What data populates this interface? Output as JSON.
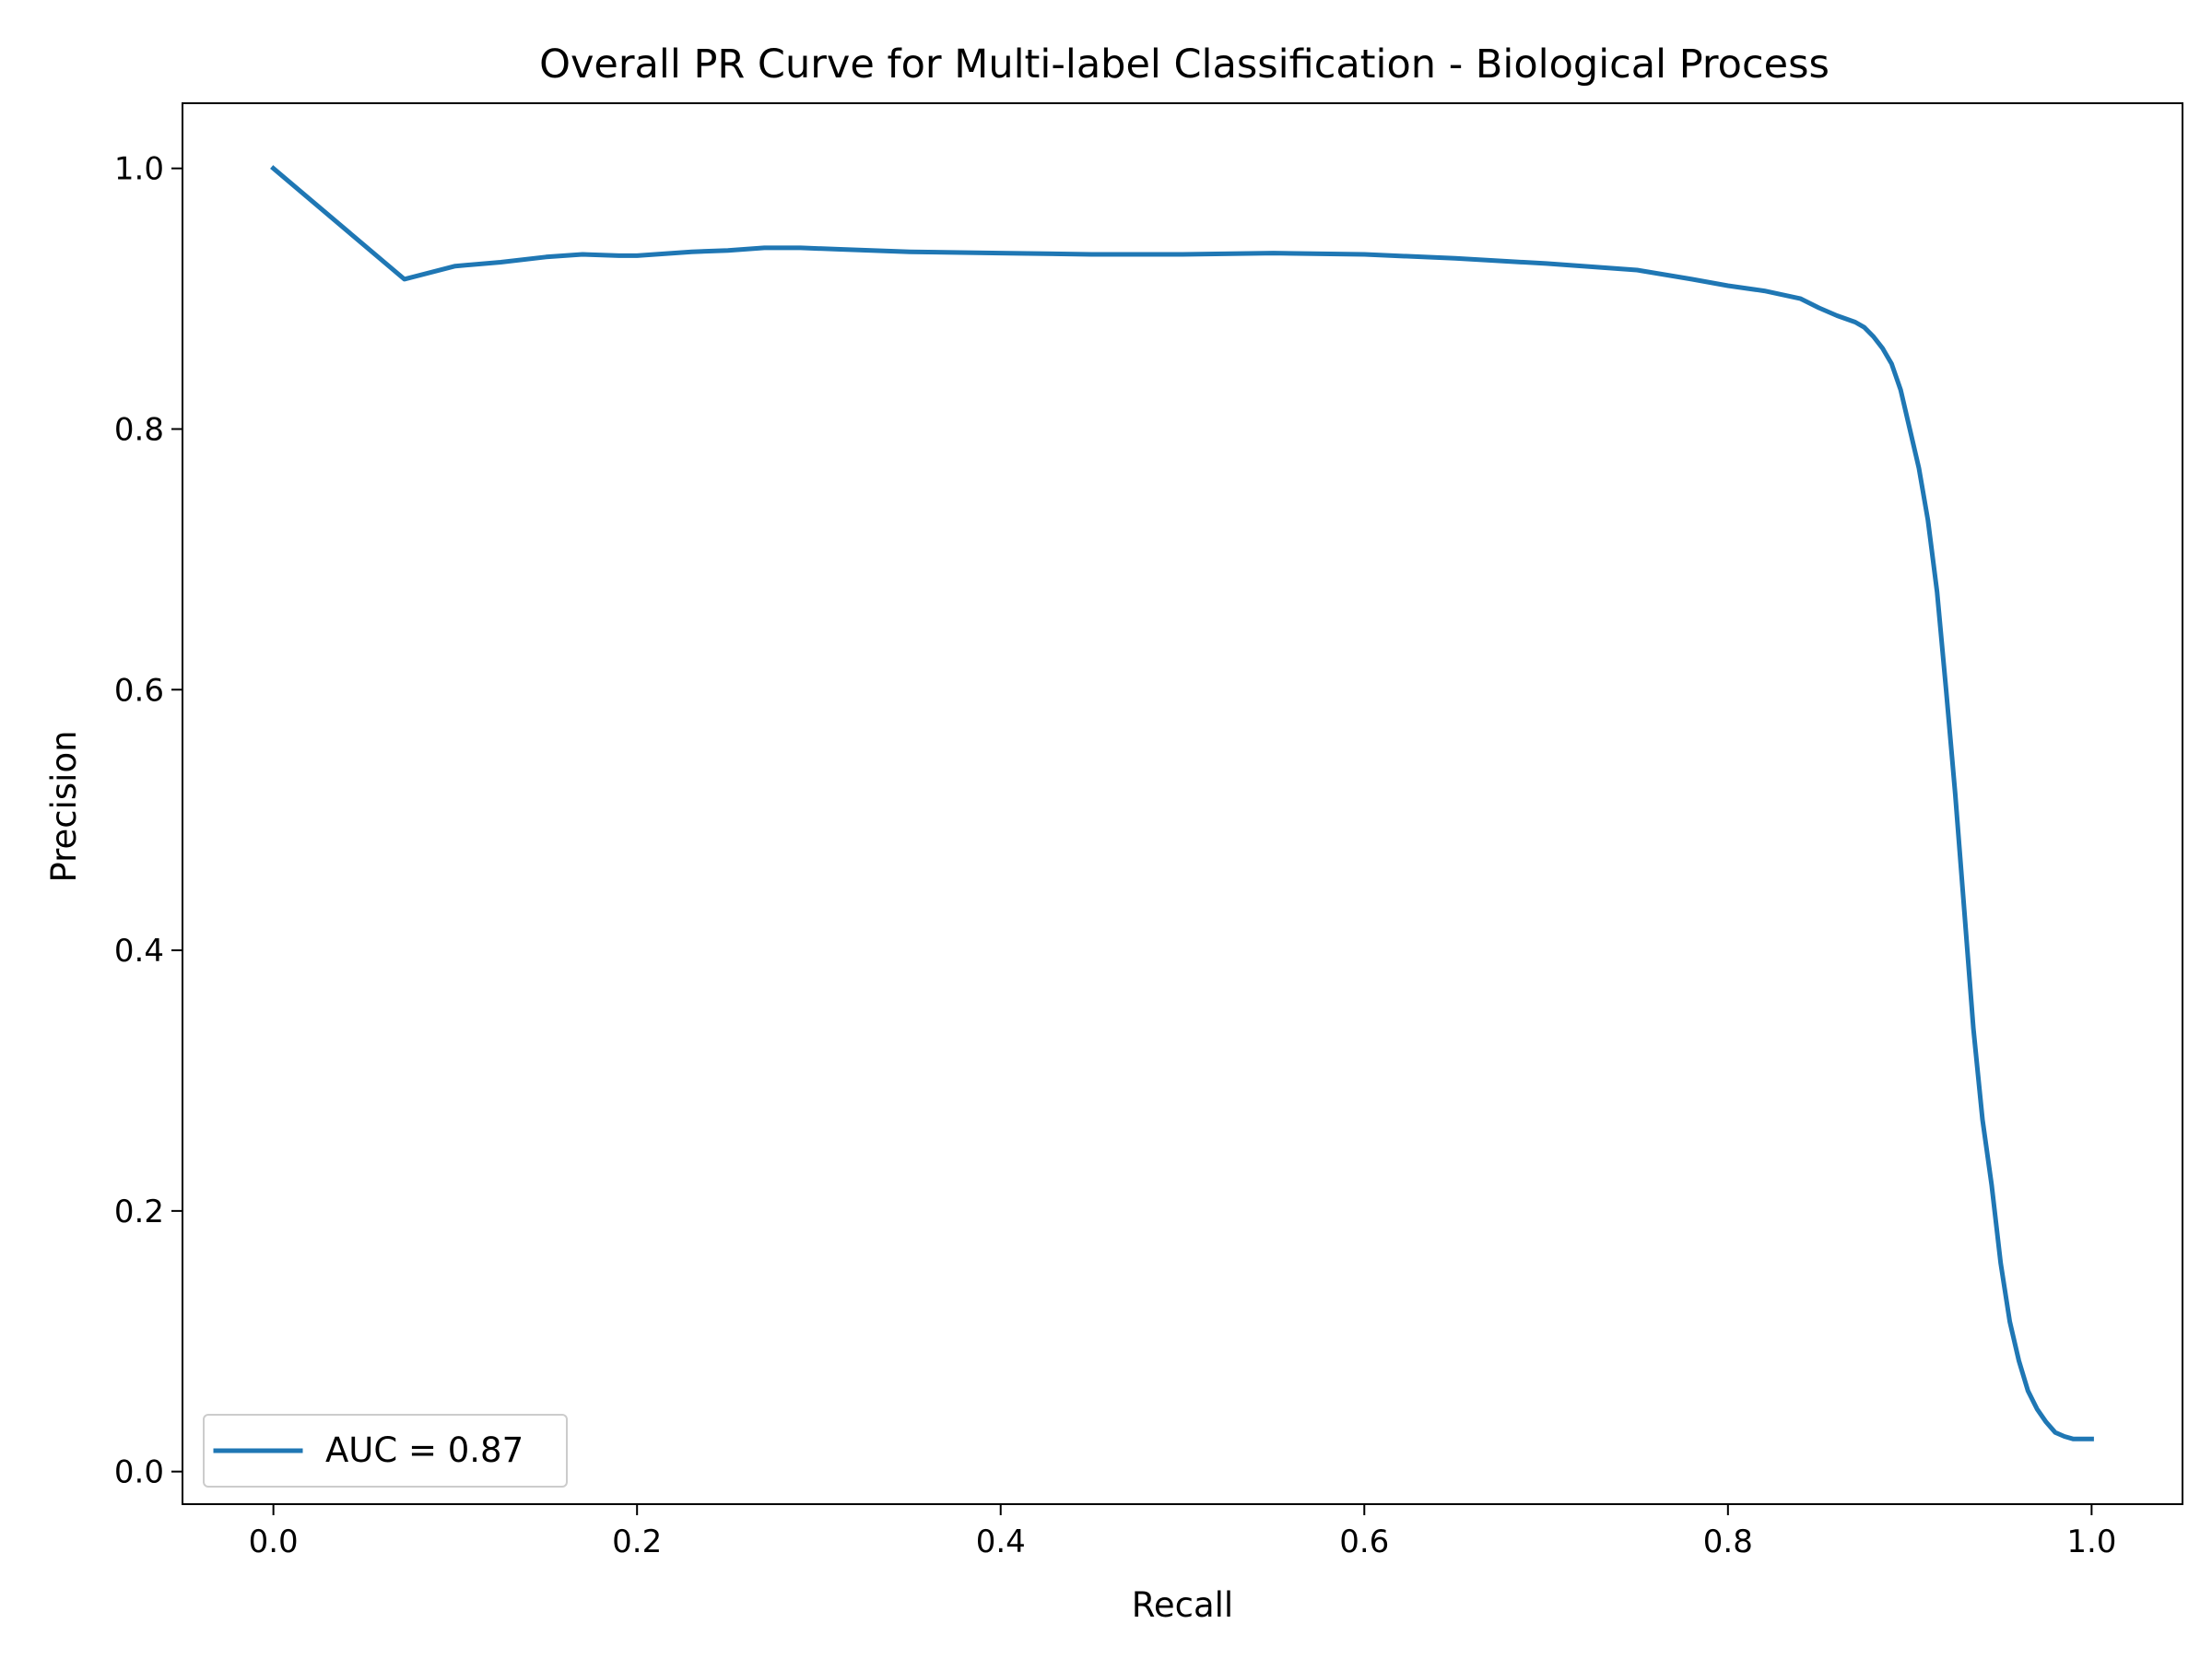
{
  "chart_data": {
    "type": "line",
    "title": "Overall PR Curve for Multi-label Classification - Biological Process",
    "xlabel": "Recall",
    "ylabel": "Precision",
    "xlim": [
      -0.05,
      1.05
    ],
    "ylim": [
      -0.025,
      1.05
    ],
    "xticks": [
      0.0,
      0.2,
      0.4,
      0.6,
      0.8,
      1.0
    ],
    "xtick_labels": [
      "0.0",
      "0.2",
      "0.4",
      "0.6",
      "0.8",
      "1.0"
    ],
    "yticks": [
      0.0,
      0.2,
      0.4,
      0.6,
      0.8,
      1.0
    ],
    "ytick_labels": [
      "0.0",
      "0.2",
      "0.4",
      "0.6",
      "0.8",
      "1.0"
    ],
    "grid": false,
    "legend": {
      "placement": "lower-left",
      "entries": [
        "AUC = 0.87"
      ]
    },
    "series": [
      {
        "name": "AUC = 0.87",
        "color": "#1f77b4",
        "x": [
          0.0,
          0.072,
          0.1,
          0.125,
          0.15,
          0.17,
          0.19,
          0.2,
          0.21,
          0.23,
          0.25,
          0.27,
          0.29,
          0.31,
          0.35,
          0.4,
          0.45,
          0.5,
          0.55,
          0.6,
          0.65,
          0.7,
          0.75,
          0.78,
          0.8,
          0.82,
          0.84,
          0.85,
          0.86,
          0.87,
          0.875,
          0.88,
          0.885,
          0.89,
          0.895,
          0.9,
          0.905,
          0.91,
          0.915,
          0.92,
          0.925,
          0.93,
          0.935,
          0.94,
          0.945,
          0.95,
          0.955,
          0.96,
          0.965,
          0.97,
          0.975,
          0.98,
          0.985,
          0.99,
          0.995,
          1.0
        ],
        "y": [
          1.0,
          0.915,
          0.925,
          0.928,
          0.932,
          0.934,
          0.933,
          0.933,
          0.934,
          0.936,
          0.937,
          0.939,
          0.939,
          0.938,
          0.936,
          0.935,
          0.934,
          0.934,
          0.935,
          0.934,
          0.931,
          0.927,
          0.922,
          0.915,
          0.91,
          0.906,
          0.9,
          0.893,
          0.887,
          0.882,
          0.878,
          0.871,
          0.862,
          0.85,
          0.83,
          0.8,
          0.77,
          0.73,
          0.675,
          0.6,
          0.52,
          0.43,
          0.34,
          0.27,
          0.22,
          0.16,
          0.115,
          0.085,
          0.062,
          0.048,
          0.038,
          0.03,
          0.027,
          0.025,
          0.025,
          0.025
        ]
      }
    ]
  }
}
